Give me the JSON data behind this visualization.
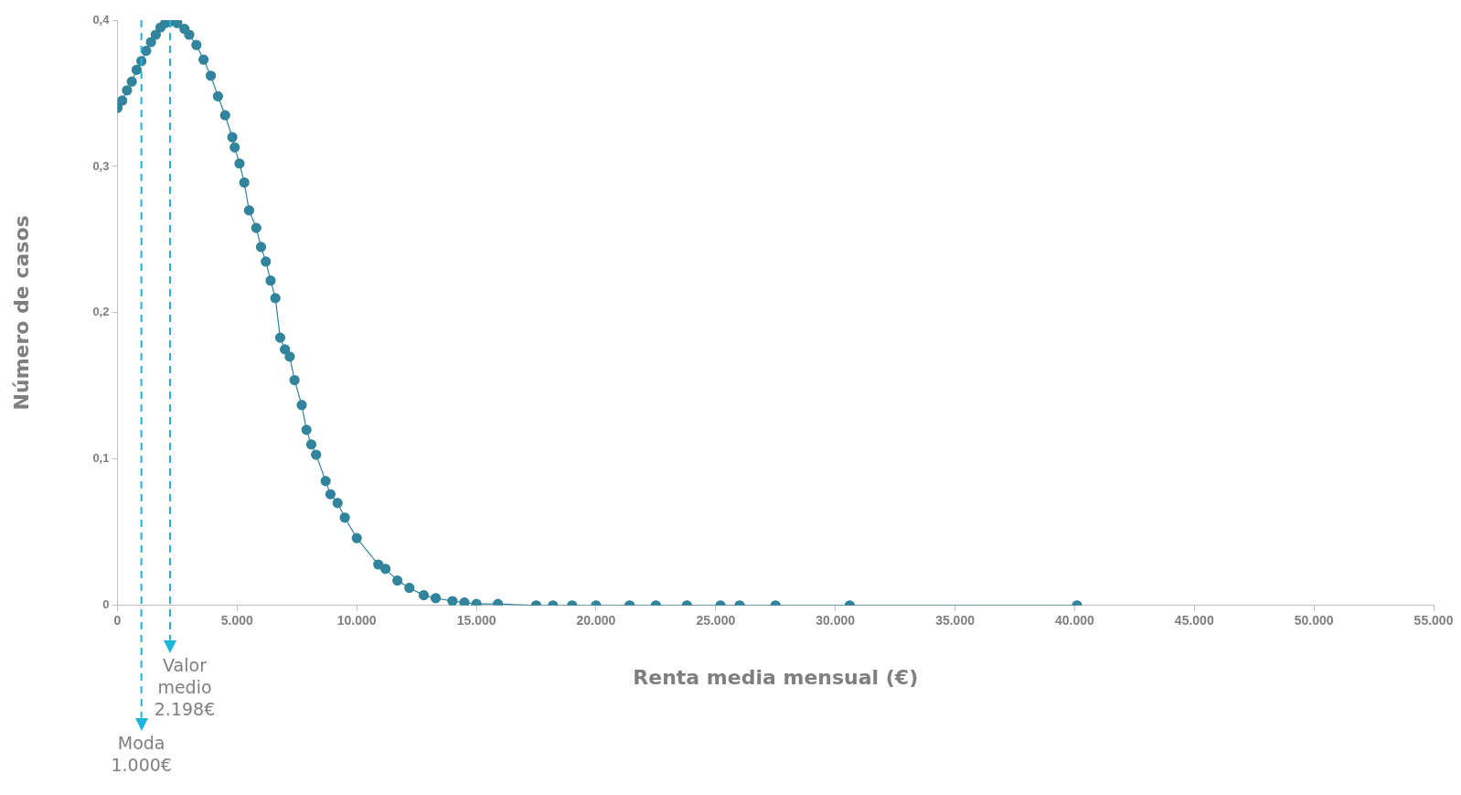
{
  "chart_data": {
    "type": "line",
    "xlabel": "Renta media mensual (€)",
    "ylabel": "Número de casos",
    "marker": "circle",
    "line_style": "solid",
    "grid": false,
    "legend": false,
    "xlim": [
      0,
      55000
    ],
    "ylim": [
      0,
      0.4
    ],
    "xticks": [
      0,
      {
        "value": 5000,
        "label": "5.000"
      },
      {
        "value": 10000,
        "label": "10.000"
      },
      {
        "value": 15000,
        "label": "15.000"
      },
      {
        "value": 20000,
        "label": "20.000"
      },
      {
        "value": 25000,
        "label": "25.000"
      },
      {
        "value": 30000,
        "label": "30.000"
      },
      {
        "value": 35000,
        "label": "35.000"
      },
      {
        "value": 40000,
        "label": "40.000"
      },
      {
        "value": 45000,
        "label": "45.000"
      },
      {
        "value": 50000,
        "label": "50.000"
      },
      {
        "value": 55000,
        "label": "55.000"
      }
    ],
    "yticks": [
      0,
      {
        "value": 0.1,
        "label": "0,1"
      },
      {
        "value": 0.2,
        "label": "0,2"
      },
      {
        "value": 0.3,
        "label": "0,3"
      },
      {
        "value": 0.4,
        "label": "0,4"
      }
    ],
    "x": [
      0,
      200,
      400,
      600,
      800,
      1000,
      1200,
      1400,
      1600,
      1800,
      2000,
      2200,
      2500,
      2800,
      3000,
      3300,
      3600,
      3900,
      4200,
      4500,
      4800,
      4900,
      5100,
      5300,
      5500,
      5800,
      6000,
      6200,
      6400,
      6600,
      6800,
      7000,
      7200,
      7400,
      7700,
      7900,
      8100,
      8300,
      8700,
      8900,
      9200,
      9500,
      10000,
      10900,
      11200,
      11700,
      12200,
      12800,
      13300,
      14000,
      14500,
      15000,
      15900,
      17500,
      18200,
      19000,
      20000,
      21400,
      22500,
      23800,
      25200,
      26000,
      27500,
      30600,
      40100
    ],
    "series": [
      {
        "color": "#31849b",
        "values": [
          0.34,
          0.345,
          0.352,
          0.358,
          0.366,
          0.372,
          0.379,
          0.385,
          0.39,
          0.395,
          0.398,
          0.399,
          0.398,
          0.394,
          0.39,
          0.383,
          0.373,
          0.362,
          0.348,
          0.335,
          0.32,
          0.313,
          0.302,
          0.289,
          0.27,
          0.258,
          0.245,
          0.235,
          0.222,
          0.21,
          0.183,
          0.175,
          0.17,
          0.154,
          0.137,
          0.12,
          0.11,
          0.103,
          0.085,
          0.076,
          0.07,
          0.06,
          0.046,
          0.028,
          0.025,
          0.017,
          0.012,
          0.007,
          0.005,
          0.003,
          0.002,
          0.001,
          0.001,
          0,
          0,
          0,
          0,
          0,
          0,
          0,
          0,
          0,
          0,
          0,
          0
        ]
      }
    ],
    "ref_lines": [
      {
        "axis": "x",
        "value": 2198,
        "label": "Valor\nmedio\n2.198€",
        "color": "#1eb4dc",
        "line_style": "dashed"
      },
      {
        "axis": "x",
        "value": 1000,
        "label": "Moda\n1.000€",
        "color": "#1eb4dc",
        "line_style": "dashed"
      }
    ]
  }
}
